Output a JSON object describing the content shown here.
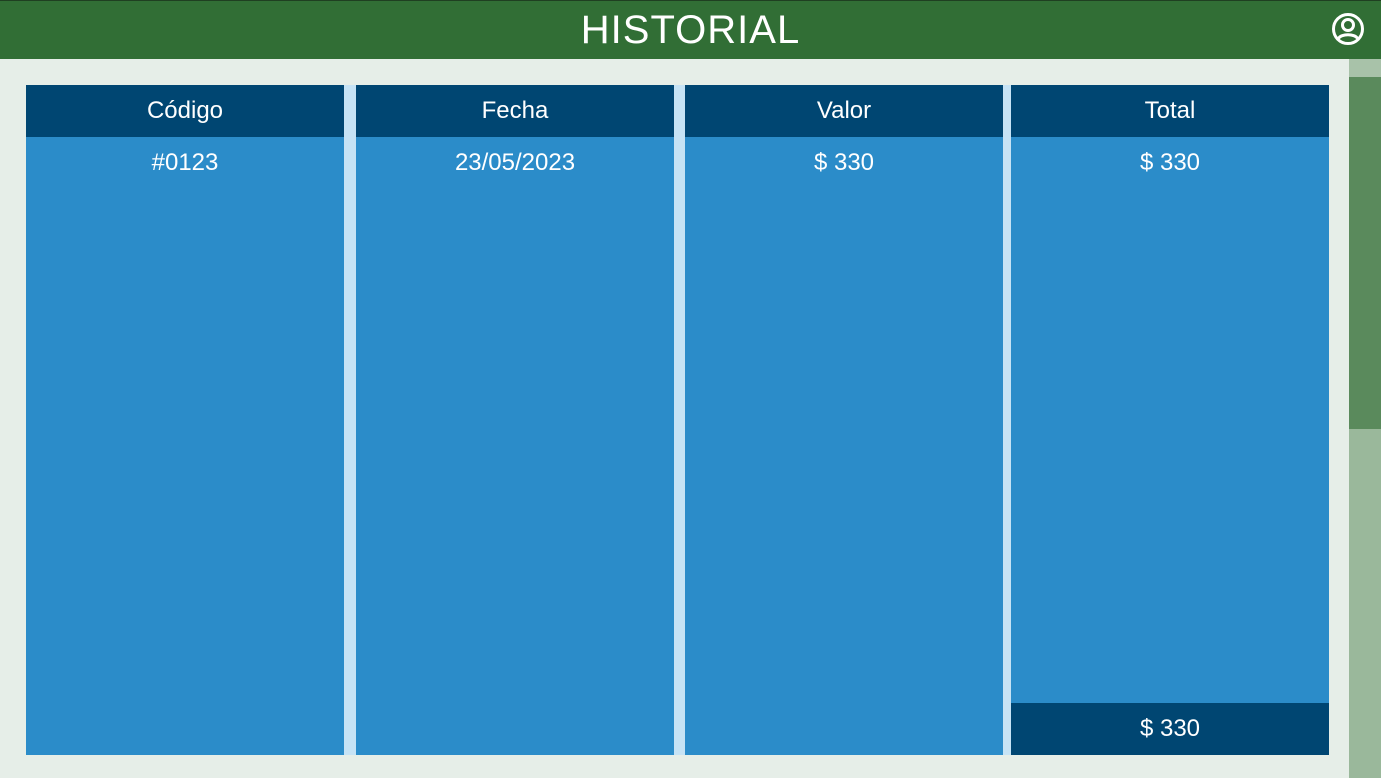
{
  "header": {
    "title": "HISTORIAL",
    "account_icon": "account-circle-icon",
    "background_color": "#316e35"
  },
  "table": {
    "columns": [
      "Código",
      "Fecha",
      "Valor",
      "Total"
    ],
    "rows": [
      {
        "codigo": "#0123",
        "fecha": "23/05/2023",
        "valor": "$ 330",
        "total": "$ 330"
      }
    ],
    "grand_total": "$ 330",
    "header_color": "#004672",
    "body_color": "#2b8cc9"
  }
}
